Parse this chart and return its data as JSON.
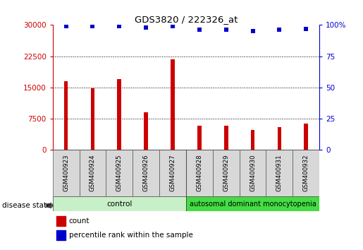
{
  "title": "GDS3820 / 222326_at",
  "samples": [
    "GSM400923",
    "GSM400924",
    "GSM400925",
    "GSM400926",
    "GSM400927",
    "GSM400928",
    "GSM400929",
    "GSM400930",
    "GSM400931",
    "GSM400932"
  ],
  "counts": [
    16500,
    14800,
    17000,
    9000,
    21800,
    5800,
    5900,
    4800,
    5500,
    6300
  ],
  "percentiles": [
    99,
    99,
    99,
    98,
    99,
    96,
    96,
    95,
    96,
    97
  ],
  "bar_color": "#cc0000",
  "dot_color": "#0000cc",
  "ylim_left": [
    0,
    30000
  ],
  "ylim_right": [
    0,
    100
  ],
  "yticks_left": [
    0,
    7500,
    15000,
    22500,
    30000
  ],
  "yticks_right": [
    0,
    25,
    50,
    75,
    100
  ],
  "group_control_label": "control",
  "group_auto_label": "autosomal dominant monocytopenia",
  "group_control_color": "#c8f0c8",
  "group_auto_color": "#44dd44",
  "disease_state_label": "disease state",
  "legend_count": "count",
  "legend_percentile": "percentile rank within the sample",
  "tick_bg": "#d8d8d8",
  "bar_width": 0.15
}
